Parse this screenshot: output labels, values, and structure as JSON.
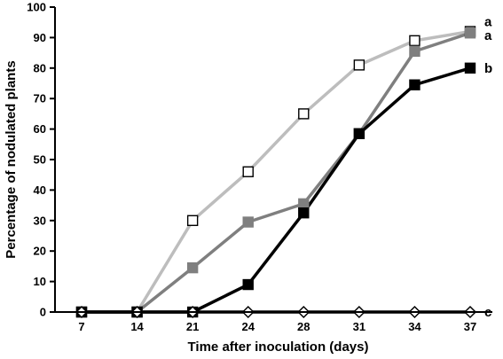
{
  "chart_data": {
    "type": "line",
    "title": "",
    "xlabel": "Time after inoculation (days)",
    "ylabel": "Percentage of nodulated plants",
    "x": [
      7,
      14,
      21,
      24,
      28,
      31,
      34,
      37
    ],
    "x_tick_labels": [
      "7",
      "14",
      "21",
      "24",
      "28",
      "31",
      "34",
      "37"
    ],
    "ylim": [
      0,
      100
    ],
    "y_ticks": [
      0,
      10,
      20,
      30,
      40,
      50,
      60,
      70,
      80,
      90,
      100
    ],
    "grid": false,
    "legend": "none",
    "series": [
      {
        "values": [
          0,
          0,
          30,
          46,
          65,
          81,
          89,
          92
        ],
        "line_color": "#bdbdbd",
        "marker": "square",
        "marker_fill": "#ffffff",
        "marker_stroke": "#000000",
        "end_label": "a"
      },
      {
        "values": [
          0,
          0,
          14.5,
          29.5,
          35.5,
          58.5,
          85.5,
          91.5
        ],
        "line_color": "#7f7f7f",
        "marker": "square",
        "marker_fill": "#7f7f7f",
        "marker_stroke": "#7f7f7f",
        "end_label": "a"
      },
      {
        "values": [
          0,
          0,
          0,
          9,
          32.5,
          58.5,
          74.5,
          80
        ],
        "line_color": "#000000",
        "marker": "square",
        "marker_fill": "#000000",
        "marker_stroke": "#000000",
        "end_label": "b"
      },
      {
        "values": [
          0,
          0,
          0,
          0,
          0,
          0,
          0,
          0
        ],
        "line_color": "#000000",
        "marker": "diamond",
        "marker_fill": "#ffffff",
        "marker_stroke": "#000000",
        "end_label": "c"
      }
    ]
  }
}
